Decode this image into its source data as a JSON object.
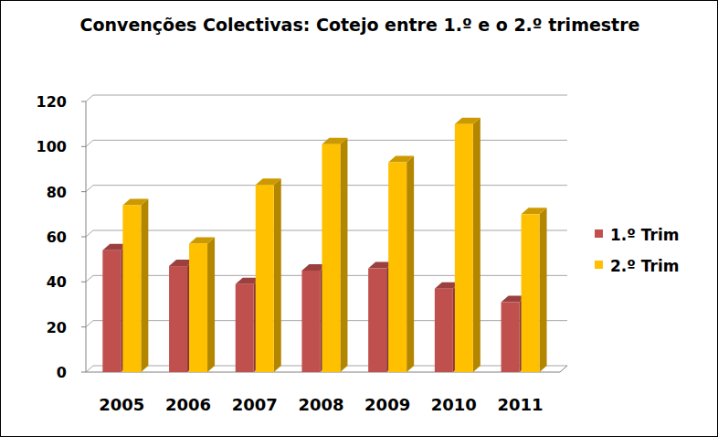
{
  "chart_data": {
    "type": "bar",
    "title": "Convenções Colectivas: Cotejo entre 1.º e o 2.º trimestre",
    "categories": [
      "2005",
      "2006",
      "2007",
      "2008",
      "2009",
      "2010",
      "2011"
    ],
    "series": [
      {
        "name": "1.º Trim",
        "color": "#c0504d",
        "values": [
          54,
          47,
          39,
          45,
          46,
          37,
          31
        ]
      },
      {
        "name": "2.º Trim",
        "color": "#ffc000",
        "values": [
          74,
          57,
          83,
          101,
          93,
          110,
          70
        ]
      }
    ],
    "ylim": [
      0,
      120
    ],
    "yticks": [
      0,
      20,
      40,
      60,
      80,
      100,
      120
    ],
    "grid": true,
    "legend": "right"
  }
}
